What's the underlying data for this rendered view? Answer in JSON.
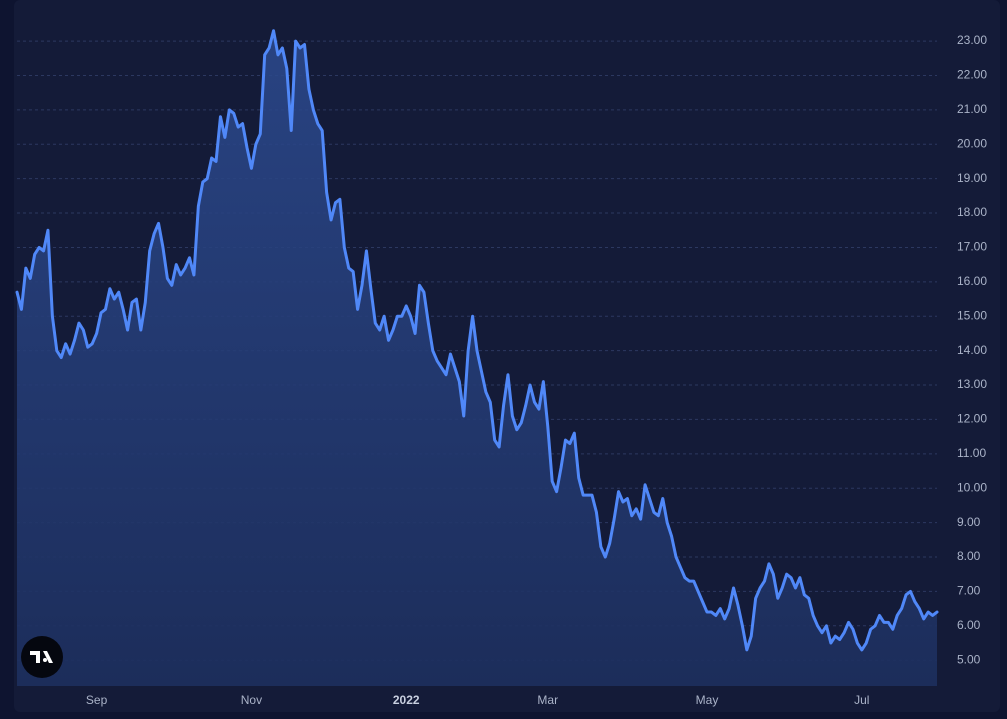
{
  "chart_data": {
    "type": "area",
    "color": "#5088f8",
    "grid": true,
    "ylim": [
      4.25,
      23.7
    ],
    "yticks": [
      {
        "value": 5,
        "label": "5.00"
      },
      {
        "value": 6,
        "label": "6.00"
      },
      {
        "value": 7,
        "label": "7.00"
      },
      {
        "value": 8,
        "label": "8.00"
      },
      {
        "value": 9,
        "label": "9.00"
      },
      {
        "value": 10,
        "label": "10.00"
      },
      {
        "value": 11,
        "label": "11.00"
      },
      {
        "value": 12,
        "label": "12.00"
      },
      {
        "value": 13,
        "label": "13.00"
      },
      {
        "value": 14,
        "label": "14.00"
      },
      {
        "value": 15,
        "label": "15.00"
      },
      {
        "value": 16,
        "label": "16.00"
      },
      {
        "value": 17,
        "label": "17.00"
      },
      {
        "value": 18,
        "label": "18.00"
      },
      {
        "value": 19,
        "label": "19.00"
      },
      {
        "value": 20,
        "label": "20.00"
      },
      {
        "value": 21,
        "label": "21.00"
      },
      {
        "value": 22,
        "label": "22.00"
      },
      {
        "value": 23,
        "label": "23.00"
      }
    ],
    "categories": [
      null,
      null,
      null,
      null,
      null,
      null,
      null,
      null,
      null,
      null,
      null,
      null,
      null,
      null,
      null,
      null,
      null,
      null,
      "Sep",
      null,
      null,
      null,
      null,
      null,
      null,
      null,
      null,
      null,
      null,
      null,
      null,
      null,
      null,
      null,
      null,
      null,
      null,
      null,
      null,
      null,
      null,
      null,
      null,
      null,
      null,
      null,
      null,
      null,
      null,
      null,
      null,
      null,
      null,
      "Nov",
      null,
      null,
      null,
      null,
      null,
      null,
      null,
      null,
      null,
      null,
      null,
      null,
      null,
      null,
      null,
      null,
      null,
      null,
      null,
      null,
      null,
      null,
      null,
      null,
      null,
      null,
      null,
      null,
      null,
      null,
      null,
      null,
      null,
      null,
      "2022",
      null,
      null,
      null,
      null,
      null,
      null,
      null,
      null,
      null,
      null,
      null,
      null,
      null,
      null,
      null,
      null,
      null,
      null,
      null,
      null,
      null,
      null,
      null,
      null,
      null,
      null,
      null,
      null,
      null,
      null,
      null,
      "Mar",
      null,
      null,
      null,
      null,
      null,
      null,
      null,
      null,
      null,
      null,
      null,
      null,
      null,
      null,
      null,
      null,
      null,
      null,
      null,
      null,
      null,
      null,
      null,
      null,
      null,
      null,
      null,
      null,
      null,
      null,
      null,
      null,
      null,
      null,
      null,
      "May",
      null,
      null,
      null,
      null,
      null,
      null,
      null,
      null,
      null,
      null,
      null,
      null,
      null,
      null,
      null,
      null,
      null,
      null,
      null,
      null,
      null,
      null,
      null,
      null,
      null,
      null,
      null,
      null,
      null,
      null,
      null,
      null,
      null,
      null,
      "Jul",
      null,
      null,
      null,
      null,
      null,
      null,
      null,
      null,
      null,
      null,
      null,
      null,
      null,
      null,
      null,
      null,
      null
    ],
    "values": [
      15.7,
      15.2,
      16.4,
      16.1,
      16.8,
      17.0,
      16.9,
      17.5,
      15.0,
      14.0,
      13.8,
      14.2,
      13.9,
      14.3,
      14.8,
      14.6,
      14.1,
      14.2,
      14.5,
      15.1,
      15.2,
      15.8,
      15.5,
      15.7,
      15.2,
      14.6,
      15.4,
      15.5,
      14.6,
      15.4,
      16.9,
      17.4,
      17.7,
      17.0,
      16.1,
      15.9,
      16.5,
      16.2,
      16.4,
      16.7,
      16.2,
      18.2,
      18.9,
      19.0,
      19.6,
      19.5,
      20.8,
      20.2,
      21.0,
      20.9,
      20.5,
      20.6,
      19.9,
      19.3,
      20.0,
      20.3,
      22.6,
      22.8,
      23.3,
      22.6,
      22.8,
      22.2,
      20.4,
      23.0,
      22.8,
      22.9,
      21.6,
      21.0,
      20.6,
      20.4,
      18.6,
      17.8,
      18.3,
      18.4,
      17.0,
      16.4,
      16.3,
      15.2,
      15.9,
      16.9,
      15.8,
      14.8,
      14.6,
      15.0,
      14.3,
      14.6,
      15.0,
      15.0,
      15.3,
      15.0,
      14.5,
      15.9,
      15.7,
      14.8,
      14.0,
      13.7,
      13.5,
      13.3,
      13.9,
      13.5,
      13.1,
      12.1,
      14.0,
      15.0,
      14.0,
      13.4,
      12.8,
      12.5,
      11.4,
      11.2,
      12.4,
      13.3,
      12.1,
      11.7,
      11.9,
      12.4,
      13.0,
      12.5,
      12.3,
      13.1,
      11.8,
      10.2,
      9.9,
      10.6,
      11.4,
      11.3,
      11.6,
      10.3,
      9.8,
      9.8,
      9.8,
      9.3,
      8.3,
      8.0,
      8.4,
      9.1,
      9.9,
      9.6,
      9.7,
      9.2,
      9.4,
      9.1,
      10.1,
      9.7,
      9.3,
      9.2,
      9.7,
      9.0,
      8.6,
      8.0,
      7.7,
      7.4,
      7.3,
      7.3,
      7.0,
      6.7,
      6.4,
      6.4,
      6.3,
      6.5,
      6.2,
      6.5,
      7.1,
      6.6,
      6.0,
      5.3,
      5.7,
      6.8,
      7.1,
      7.3,
      7.8,
      7.5,
      6.8,
      7.1,
      7.5,
      7.4,
      7.1,
      7.4,
      6.9,
      6.8,
      6.3,
      6.0,
      5.8,
      6.0,
      5.5,
      5.7,
      5.6,
      5.8,
      6.1,
      5.9,
      5.5,
      5.3,
      5.5,
      5.9,
      6.0,
      6.3,
      6.1,
      6.1,
      5.9,
      6.3,
      6.5,
      6.9,
      7.0,
      6.7,
      6.5,
      6.2,
      6.4,
      6.3,
      6.4
    ]
  }
}
